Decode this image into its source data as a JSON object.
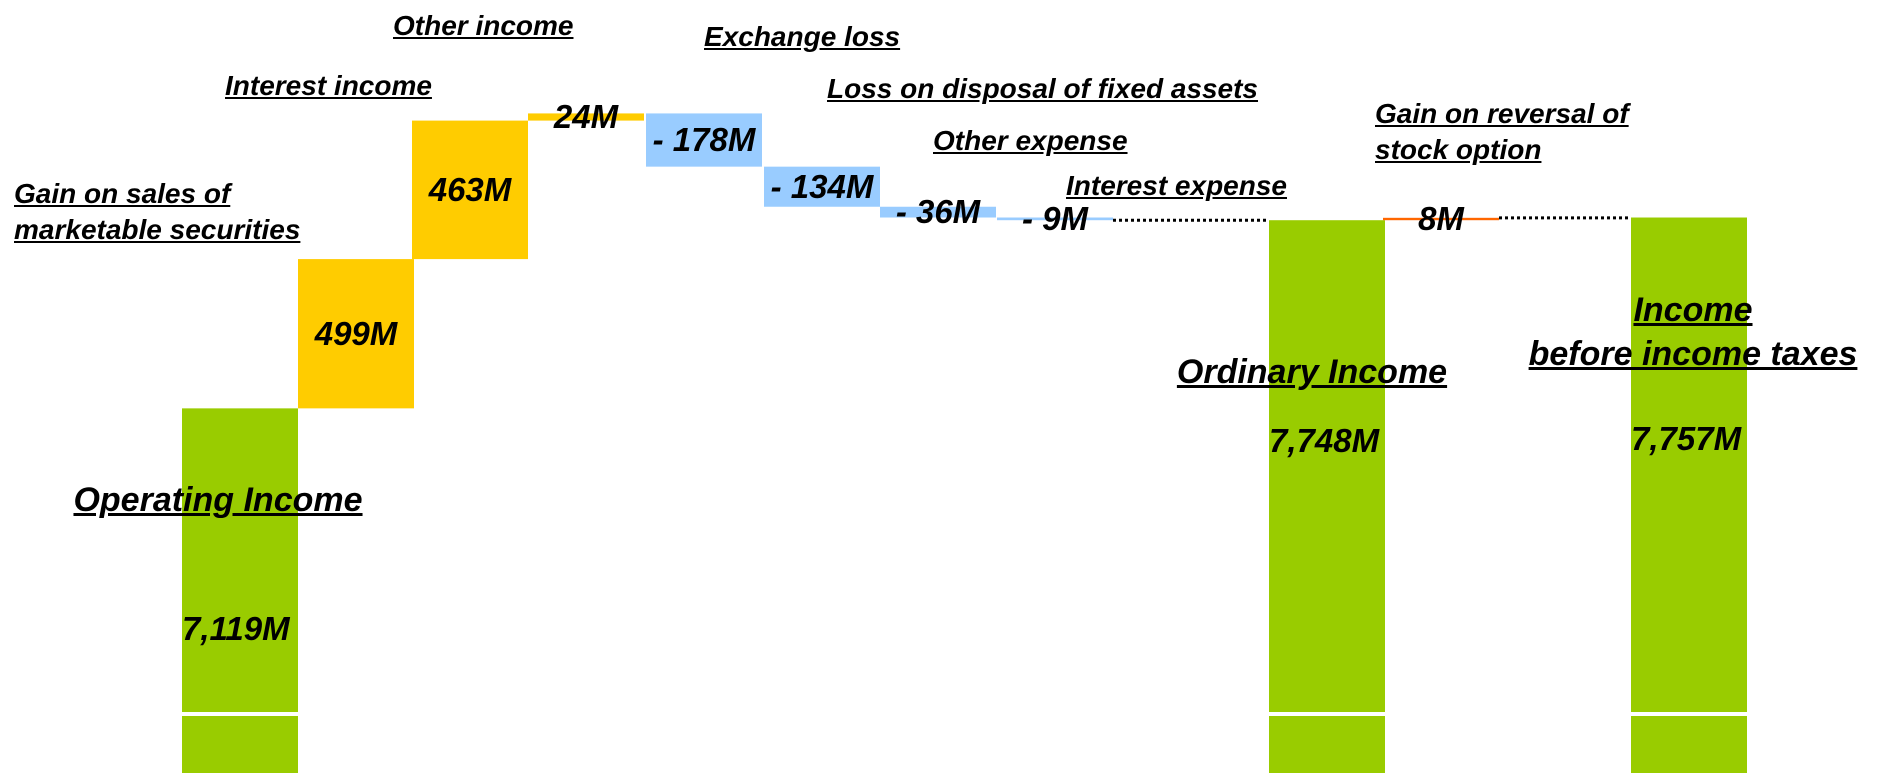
{
  "chart_data": {
    "type": "waterfall",
    "categories": [
      "Operating  Income",
      "Gain on sales of\nmarketable securities",
      "Interest income",
      "Other income",
      "Exchange loss",
      "Loss on disposal of fixed assets",
      "Other expense",
      "Interest expense",
      "Ordinary Income",
      "Gain on reversal of\n stock option",
      "Income\nbefore income taxes"
    ],
    "values": [
      7119,
      499,
      463,
      24,
      -178,
      -134,
      -36,
      -9,
      7748,
      8,
      7757
    ],
    "value_labels": [
      "7,119M",
      "499M",
      "463M",
      "24M",
      "- 178M",
      "- 134M",
      "- 36M",
      "- 9M",
      "7,748M",
      "8M",
      "7,757M"
    ],
    "measure": [
      "total",
      "relative",
      "relative",
      "relative",
      "relative",
      "relative",
      "relative",
      "relative",
      "total",
      "relative",
      "total"
    ],
    "colors": [
      "#99cc00",
      "#ffcc00",
      "#ffcc00",
      "#ffcc00",
      "#99ccff",
      "#99ccff",
      "#99ccff",
      "#99ccff",
      "#99cc00",
      "#ff6600",
      "#99cc00"
    ],
    "ylim": [
      5900,
      8200
    ]
  }
}
